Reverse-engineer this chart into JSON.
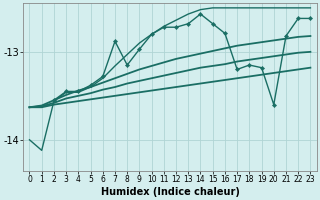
{
  "xlabel": "Humidex (Indice chaleur)",
  "background_color": "#d4eeee",
  "grid_color": "#b0d4d4",
  "line_color": "#1a6e64",
  "xlim": [
    -0.5,
    23.5
  ],
  "ylim": [
    -14.35,
    -12.45
  ],
  "yticks": [
    -14,
    -13
  ],
  "xticks": [
    0,
    1,
    2,
    3,
    4,
    5,
    6,
    7,
    8,
    9,
    10,
    11,
    12,
    13,
    14,
    15,
    16,
    17,
    18,
    19,
    20,
    21,
    22,
    23
  ],
  "series": [
    {
      "x": [
        0,
        1,
        2,
        3,
        4,
        5,
        6,
        7,
        8,
        9,
        10,
        11,
        12,
        13,
        14,
        15,
        16,
        17,
        18,
        19,
        20,
        21,
        22,
        23
      ],
      "y": [
        -13.63,
        -13.63,
        -13.6,
        -13.58,
        -13.56,
        -13.54,
        -13.52,
        -13.5,
        -13.48,
        -13.46,
        -13.44,
        -13.42,
        -13.4,
        -13.38,
        -13.36,
        -13.34,
        -13.32,
        -13.3,
        -13.28,
        -13.26,
        -13.24,
        -13.22,
        -13.2,
        -13.18
      ],
      "marker": false,
      "linewidth": 1.3
    },
    {
      "x": [
        0,
        1,
        2,
        3,
        4,
        5,
        6,
        7,
        8,
        9,
        10,
        11,
        12,
        13,
        14,
        15,
        16,
        17,
        18,
        19,
        20,
        21,
        22,
        23
      ],
      "y": [
        -13.63,
        -13.61,
        -13.55,
        -13.49,
        -13.44,
        -13.4,
        -13.35,
        -13.3,
        -13.25,
        -13.2,
        -13.16,
        -13.12,
        -13.08,
        -13.05,
        -13.02,
        -12.99,
        -12.96,
        -12.93,
        -12.91,
        -12.89,
        -12.87,
        -12.85,
        -12.83,
        -12.82
      ],
      "marker": false,
      "linewidth": 1.3
    },
    {
      "x": [
        0,
        1,
        2,
        3,
        4,
        5,
        6,
        7,
        8,
        9,
        10,
        11,
        12,
        13,
        14,
        15,
        16,
        17,
        18,
        19,
        20,
        21,
        22,
        23
      ],
      "y": [
        -13.63,
        -13.62,
        -13.58,
        -13.53,
        -13.5,
        -13.47,
        -13.43,
        -13.4,
        -13.36,
        -13.33,
        -13.3,
        -13.27,
        -13.24,
        -13.21,
        -13.18,
        -13.16,
        -13.14,
        -13.11,
        -13.09,
        -13.07,
        -13.05,
        -13.03,
        -13.01,
        -13.0
      ],
      "marker": false,
      "linewidth": 1.3
    },
    {
      "x": [
        2,
        3,
        4,
        5,
        6,
        7,
        8,
        9,
        10,
        11,
        12,
        13,
        14,
        15,
        16,
        17,
        18,
        19,
        20,
        21,
        22,
        23
      ],
      "y": [
        -13.55,
        -13.45,
        -13.45,
        -13.38,
        -13.28,
        -12.88,
        -13.15,
        -12.97,
        -12.8,
        -12.72,
        -12.72,
        -12.68,
        -12.57,
        -12.68,
        -12.79,
        -13.2,
        -13.15,
        -13.18,
        -13.6,
        -12.82,
        -12.62,
        -12.62
      ],
      "marker": true,
      "linewidth": 1.0
    },
    {
      "x": [
        0,
        1,
        2,
        3,
        4,
        5,
        6,
        7,
        8,
        9,
        10,
        11,
        12,
        13,
        14,
        15,
        16,
        17,
        18,
        19,
        20,
        21,
        22,
        23
      ],
      "y": [
        -14.0,
        -14.12,
        -13.56,
        -13.46,
        -13.46,
        -13.4,
        -13.3,
        -13.16,
        -13.03,
        -12.9,
        -12.8,
        -12.71,
        -12.64,
        -12.57,
        -12.52,
        -12.5,
        -12.5,
        -12.5,
        -12.5,
        -12.5,
        -12.5,
        -12.5,
        -12.5,
        -12.5
      ],
      "marker": false,
      "linewidth": 1.0
    }
  ]
}
